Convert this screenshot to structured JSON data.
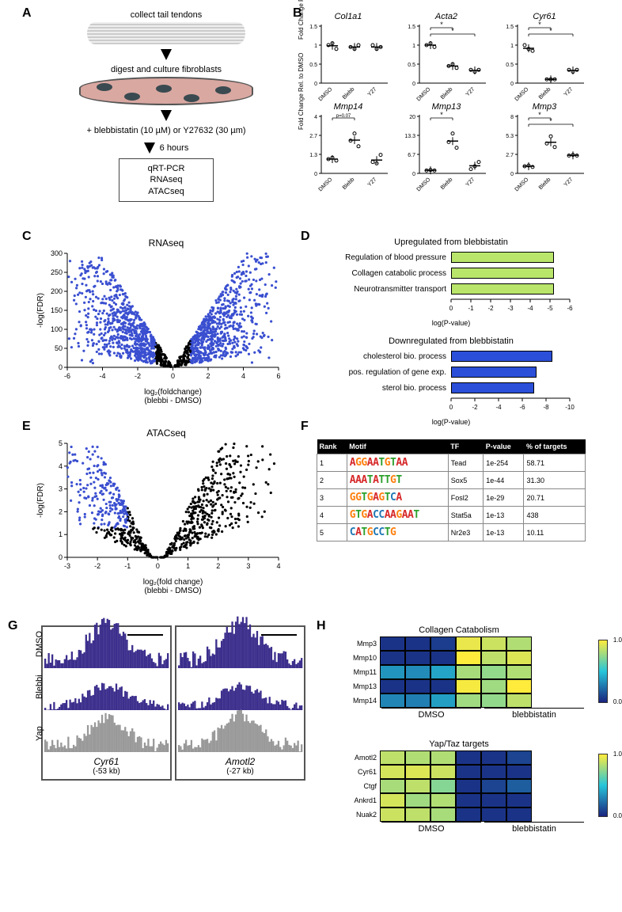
{
  "labels": {
    "A": "A",
    "B": "B",
    "C": "C",
    "D": "D",
    "E": "E",
    "F": "F",
    "G": "G",
    "H": "H"
  },
  "panelA": {
    "step1": "collect tail tendons",
    "step2": "digest and culture fibroblasts",
    "step3": "+ blebbistatin (10 µM) or Y27632 (30 µm)",
    "step4_time": "6 hours",
    "outbox": [
      "qRT-PCR",
      "RNAseq",
      "ATACseq"
    ]
  },
  "panelB": {
    "ylabel": "Fold Change Rel. to DMSO",
    "xlabels": [
      "DMSO",
      "Blebb",
      "Y27"
    ],
    "plots": [
      {
        "title": "Col1a1",
        "ymax": 1.5,
        "pts": [
          [
            0,
            1.0
          ],
          [
            0,
            1.05
          ],
          [
            0,
            0.9
          ],
          [
            1,
            0.95
          ],
          [
            1,
            0.9
          ],
          [
            1,
            1.0
          ],
          [
            2,
            1.0
          ],
          [
            2,
            0.9
          ],
          [
            2,
            0.95
          ]
        ],
        "sig": []
      },
      {
        "title": "Acta2",
        "ymax": 1.5,
        "pts": [
          [
            0,
            1.0
          ],
          [
            0,
            1.05
          ],
          [
            0,
            0.95
          ],
          [
            1,
            0.45
          ],
          [
            1,
            0.5
          ],
          [
            1,
            0.4
          ],
          [
            2,
            0.35
          ],
          [
            2,
            0.3
          ],
          [
            2,
            0.35
          ]
        ],
        "sig": [
          [
            0,
            1,
            "*"
          ],
          [
            0,
            2,
            "*"
          ]
        ]
      },
      {
        "title": "Cyr61",
        "ymax": 1.5,
        "pts": [
          [
            0,
            1.0
          ],
          [
            0,
            0.9
          ],
          [
            0,
            0.85
          ],
          [
            1,
            0.1
          ],
          [
            1,
            0.1
          ],
          [
            1,
            0.1
          ],
          [
            2,
            0.35
          ],
          [
            2,
            0.3
          ],
          [
            2,
            0.35
          ]
        ],
        "sig": [
          [
            0,
            1,
            "*"
          ],
          [
            0,
            2,
            "*"
          ]
        ]
      },
      {
        "title": "Mmp14",
        "ymax": 4,
        "pts": [
          [
            0,
            1.0
          ],
          [
            0,
            1.1
          ],
          [
            0,
            0.9
          ],
          [
            1,
            2.3
          ],
          [
            1,
            2.8
          ],
          [
            1,
            1.9
          ],
          [
            2,
            0.8
          ],
          [
            2,
            0.7
          ],
          [
            2,
            1.3
          ]
        ],
        "sig": [
          [
            0,
            1,
            "p=0.07"
          ]
        ]
      },
      {
        "title": "Mmp13",
        "ymax": 20,
        "pts": [
          [
            0,
            1.0
          ],
          [
            0,
            1.2
          ],
          [
            0,
            1.0
          ],
          [
            1,
            11
          ],
          [
            1,
            14
          ],
          [
            1,
            9
          ],
          [
            2,
            1.5
          ],
          [
            2,
            2.5
          ],
          [
            2,
            4
          ]
        ],
        "sig": [
          [
            0,
            1,
            "*"
          ]
        ]
      },
      {
        "title": "Mmp3",
        "ymax": 8,
        "pts": [
          [
            0,
            1.0
          ],
          [
            0,
            1.1
          ],
          [
            0,
            0.9
          ],
          [
            1,
            4.2
          ],
          [
            1,
            5.2
          ],
          [
            1,
            3.7
          ],
          [
            2,
            2.5
          ],
          [
            2,
            2.6
          ],
          [
            2,
            2.5
          ]
        ],
        "sig": [
          [
            0,
            1,
            "*"
          ],
          [
            0,
            2,
            "*"
          ]
        ]
      }
    ]
  },
  "panelC": {
    "title": "RNAseq",
    "xlabel": "log₂(foldchange)\n(blebbi - DMSO)",
    "ylabel": "-log(FDR)",
    "xlim": [
      -6,
      6
    ],
    "ylim": [
      0,
      300
    ],
    "sig_color": "#3a4fd0",
    "ns_color": "#000"
  },
  "panelD": {
    "up": {
      "title": "Upregulated from blebbistatin",
      "color": "#b9e56b",
      "xlabel": "log(P-value)",
      "xrange": [
        0,
        -6
      ],
      "bars": [
        {
          "label": "Regulation of blood pressure",
          "v": 5.2
        },
        {
          "label": "Collagen catabolic process",
          "v": 5.2
        },
        {
          "label": "Neurotransmitter transport",
          "v": 5.2
        }
      ]
    },
    "down": {
      "title": "Downregulated from blebbistatin",
      "color": "#2b4fd8",
      "xlabel": "log(P-value)",
      "xrange": [
        0,
        -10
      ],
      "bars": [
        {
          "label": "cholesterol bio. process",
          "v": 8.5
        },
        {
          "label": "pos. regulation of gene exp.",
          "v": 7.2
        },
        {
          "label": "sterol bio. process",
          "v": 7.0
        }
      ]
    }
  },
  "panelE": {
    "title": "ATACseq",
    "xlabel": "log₂(fold change)\n(blebbi - DMSO)",
    "ylabel": "-log(FDR)",
    "xlim": [
      -3,
      4
    ],
    "ylim": [
      0,
      5
    ],
    "sig_color": "#3a4fd0",
    "ns_color": "#000"
  },
  "panelF": {
    "headers": [
      "Rank",
      "Motif",
      "TF",
      "P-value",
      "% of targets"
    ],
    "rows": [
      {
        "rank": "1",
        "motif": "AGGAATGTAA",
        "tf": "Tead",
        "p": "1e-254",
        "pct": "58.71"
      },
      {
        "rank": "2",
        "motif": "AAATATTGT",
        "tf": "Sox5",
        "p": "1e-44",
        "pct": "31.30"
      },
      {
        "rank": "3",
        "motif": "GGTGAGTCA",
        "tf": "Fosl2",
        "p": "1e-29",
        "pct": "20.71"
      },
      {
        "rank": "4",
        "motif": "GTGACCAAGAAT",
        "tf": "Stat5a",
        "p": "1e-13",
        "pct": "438"
      },
      {
        "rank": "5",
        "motif": "CATGCCTG",
        "tf": "Nr2e3",
        "p": "1e-13",
        "pct": "10.11"
      }
    ],
    "base_colors": {
      "A": "#d62728",
      "C": "#1f77b4",
      "G": "#ff7f0e",
      "T": "#2ca02c"
    }
  },
  "panelG": {
    "row_labels": [
      "DMSO",
      "Blebbi",
      "Yap"
    ],
    "track_colors": [
      "#3b2e8c",
      "#3b2e8c",
      "#999"
    ],
    "cols": [
      {
        "gene": "Cyr61",
        "sub": "(-53 kb)"
      },
      {
        "gene": "Amotl2",
        "sub": "(-27 kb)"
      }
    ]
  },
  "panelH": {
    "colorscale": {
      "low": "#1a237e",
      "mid": "#26c6da",
      "high": "#ffeb3b",
      "min": 0.0,
      "max": 1.0
    },
    "conditions": [
      "DMSO",
      "blebbistatin"
    ],
    "maps": [
      {
        "title": "Collagen Catabolism",
        "rows": [
          "Mmp3",
          "Mmp10",
          "Mmp11",
          "Mmp13",
          "Mmp14"
        ],
        "data": [
          [
            0.05,
            0.05,
            0.08,
            0.95,
            0.88,
            0.82
          ],
          [
            0.05,
            0.05,
            0.05,
            1.0,
            0.85,
            0.92
          ],
          [
            0.35,
            0.32,
            0.4,
            0.8,
            0.75,
            0.82
          ],
          [
            0.05,
            0.05,
            0.05,
            0.98,
            0.78,
            1.0
          ],
          [
            0.3,
            0.28,
            0.38,
            0.78,
            0.75,
            0.85
          ]
        ]
      },
      {
        "title": "Yap/Taz targets",
        "rows": [
          "Amotl2",
          "Cyr61",
          "Ctgf",
          "Ankrd1",
          "Nuak2"
        ],
        "data": [
          [
            0.85,
            0.82,
            0.82,
            0.05,
            0.05,
            0.1
          ],
          [
            0.9,
            0.92,
            0.88,
            0.05,
            0.05,
            0.05
          ],
          [
            0.8,
            0.85,
            0.72,
            0.05,
            0.1,
            0.18
          ],
          [
            0.9,
            0.78,
            0.82,
            0.05,
            0.05,
            0.05
          ],
          [
            0.88,
            0.85,
            0.8,
            0.05,
            0.05,
            0.05
          ]
        ]
      }
    ]
  }
}
